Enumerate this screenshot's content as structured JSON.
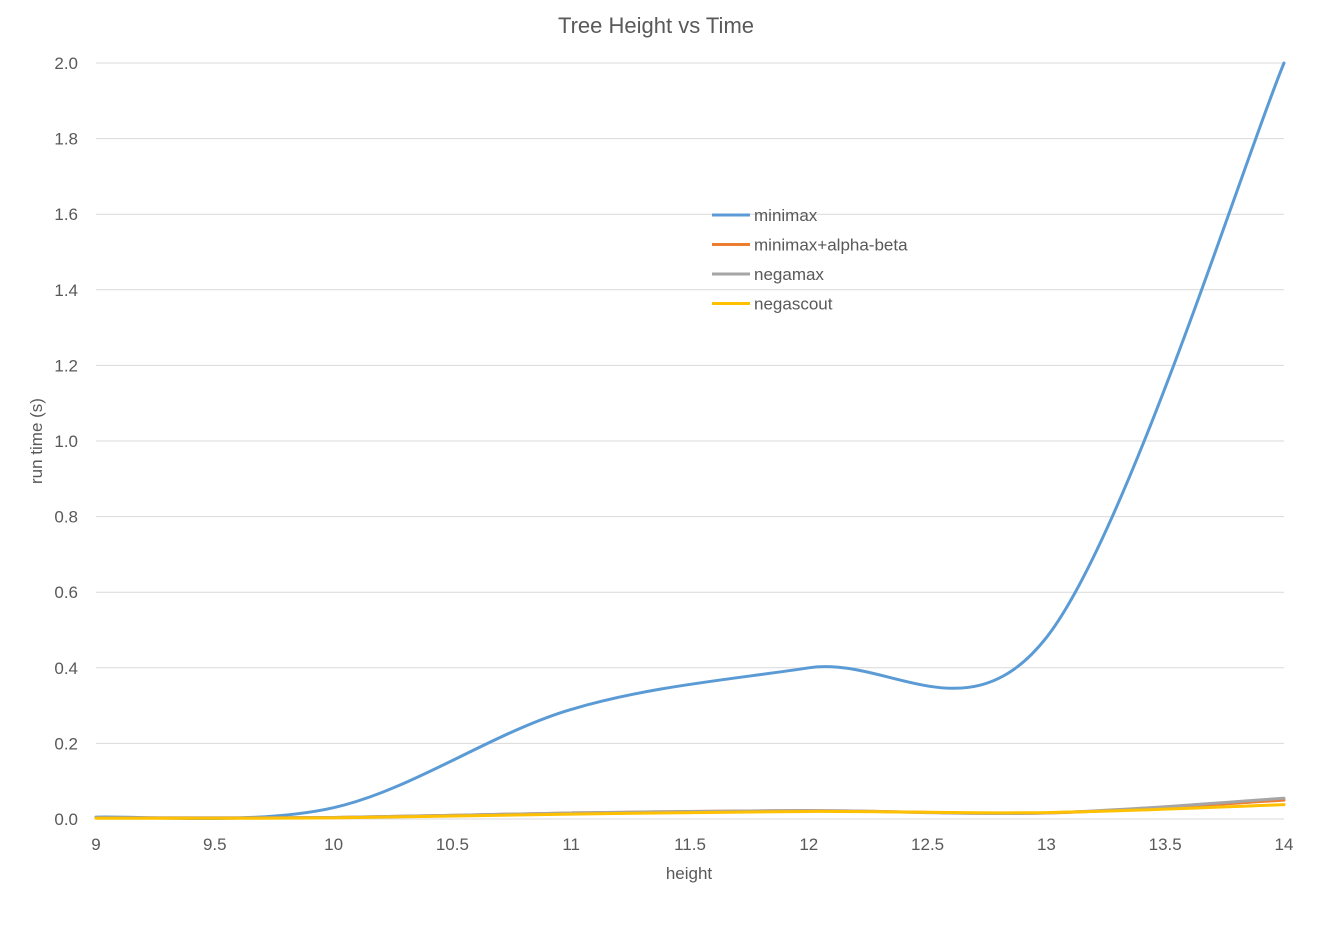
{
  "chart_data": {
    "type": "line",
    "title": "Tree Height vs Time",
    "xlabel": "height",
    "ylabel": "run time (s)",
    "xlim": [
      9,
      14
    ],
    "ylim": [
      0,
      2.0
    ],
    "x_ticks": [
      "9",
      "9.5",
      "10",
      "10.5",
      "11",
      "11.5",
      "12",
      "12.5",
      "13",
      "13.5",
      "14"
    ],
    "y_ticks": [
      "0.0",
      "0.2",
      "0.4",
      "0.6",
      "0.8",
      "1.0",
      "1.2",
      "1.4",
      "1.6",
      "1.8",
      "2.0"
    ],
    "grid": "horizontal",
    "legend_position": "inside-upper-center",
    "smooth": true,
    "x": [
      9,
      10,
      11,
      12,
      13,
      14
    ],
    "series": [
      {
        "name": "minimax",
        "color": "#5b9bd5",
        "values": [
          0.005,
          0.03,
          0.29,
          0.4,
          0.48,
          2.0
        ]
      },
      {
        "name": "minimax+alpha-beta",
        "color": "#ed7d31",
        "values": [
          0.003,
          0.004,
          0.016,
          0.022,
          0.016,
          0.05
        ]
      },
      {
        "name": "negamax",
        "color": "#a5a5a5",
        "values": [
          0.003,
          0.004,
          0.016,
          0.022,
          0.016,
          0.055
        ]
      },
      {
        "name": "negascout",
        "color": "#ffc000",
        "values": [
          0.002,
          0.003,
          0.013,
          0.02,
          0.017,
          0.038
        ]
      }
    ]
  }
}
